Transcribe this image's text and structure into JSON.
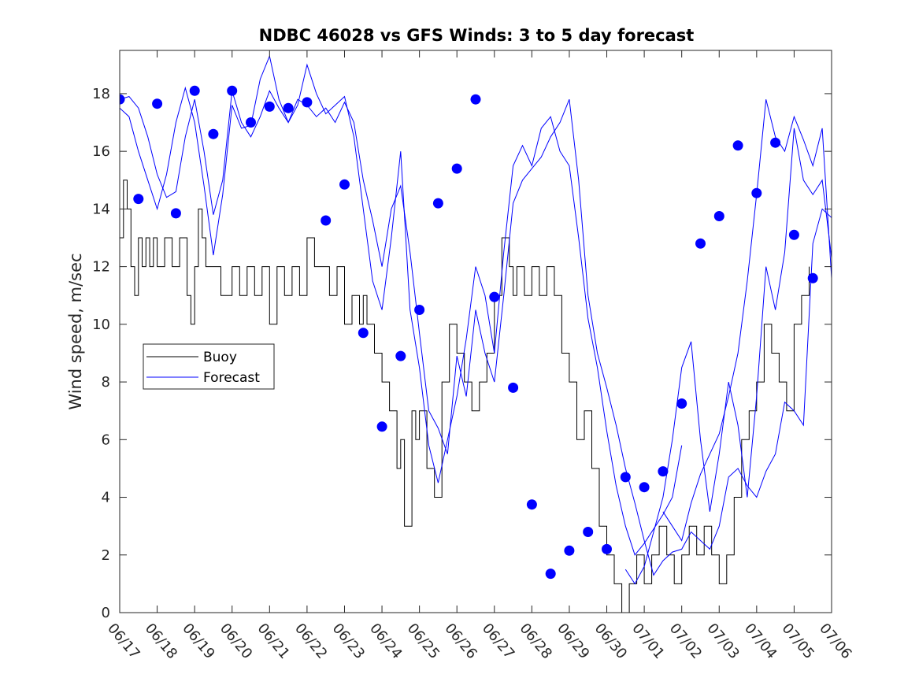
{
  "chart_data": {
    "type": "line",
    "title": "NDBC 46028 vs GFS Winds: 3 to 5 day forecast",
    "xlabel": "",
    "ylabel": "Wind speed, m/sec",
    "x_tick_labels": [
      "06/17",
      "06/18",
      "06/19",
      "06/20",
      "06/21",
      "06/22",
      "06/23",
      "06/24",
      "06/25",
      "06/26",
      "06/27",
      "06/28",
      "06/29",
      "06/30",
      "07/01",
      "07/02",
      "07/03",
      "07/04",
      "07/05",
      "07/06"
    ],
    "xlim_days": [
      0,
      19
    ],
    "y_ticks": [
      0,
      2,
      4,
      6,
      8,
      10,
      12,
      14,
      16,
      18
    ],
    "ylim": [
      0,
      19.5
    ],
    "grid": false,
    "legend": {
      "placement": "middle-left",
      "entries": [
        "Buoy",
        "Forecast"
      ]
    },
    "colors": {
      "buoy": "#000000",
      "forecast": "#0000ff",
      "marker": "#0000ff",
      "axis": "#262626"
    },
    "series": [
      {
        "name": "Buoy",
        "style": "step",
        "x": [
          0,
          0.1,
          0.2,
          0.3,
          0.4,
          0.5,
          0.6,
          0.7,
          0.8,
          0.9,
          1.0,
          1.2,
          1.4,
          1.6,
          1.8,
          1.9,
          2.0,
          2.1,
          2.2,
          2.3,
          2.5,
          2.7,
          3.0,
          3.2,
          3.4,
          3.6,
          3.8,
          4.0,
          4.2,
          4.4,
          4.6,
          4.8,
          5.0,
          5.2,
          5.4,
          5.6,
          5.8,
          6.0,
          6.2,
          6.4,
          6.5,
          6.6,
          6.8,
          7.0,
          7.2,
          7.4,
          7.5,
          7.6,
          7.8,
          7.9,
          8.0,
          8.2,
          8.4,
          8.6,
          8.8,
          9.0,
          9.2,
          9.4,
          9.6,
          9.8,
          10.0,
          10.2,
          10.4,
          10.5,
          10.6,
          10.8,
          11.0,
          11.2,
          11.4,
          11.6,
          11.8,
          12.0,
          12.2,
          12.4,
          12.6,
          12.8,
          13.0,
          13.2,
          13.4,
          13.6,
          13.8,
          14.0,
          14.2,
          14.4,
          14.6,
          14.8,
          15.0,
          15.2,
          15.4,
          15.6,
          15.8,
          16.0,
          16.2,
          16.4,
          16.6,
          16.8,
          17.0,
          17.2,
          17.4,
          17.6,
          17.8,
          18.0,
          18.2,
          18.4
        ],
        "y": [
          13,
          15,
          14,
          12,
          11,
          13,
          12,
          13,
          12,
          13,
          12,
          13,
          12,
          13,
          11,
          10,
          12,
          14,
          13,
          12,
          12,
          11,
          12,
          11,
          12,
          11,
          12,
          10,
          12,
          11,
          12,
          11,
          13,
          12,
          12,
          11,
          12,
          10,
          11,
          10,
          11,
          10,
          9,
          8,
          7,
          5,
          6,
          3,
          7,
          6,
          7,
          5,
          4,
          8,
          10,
          9,
          8,
          7,
          8,
          9,
          11,
          13,
          12,
          11,
          12,
          11,
          12,
          11,
          12,
          11,
          9,
          8,
          6,
          7,
          5,
          3,
          2,
          1,
          0,
          1,
          2,
          1,
          2,
          3,
          2,
          1,
          2,
          3,
          2,
          3,
          2,
          1,
          2,
          4,
          6,
          7,
          8,
          10,
          9,
          8,
          7,
          10,
          11,
          12
        ]
      },
      {
        "name": "Forecast",
        "style": "line",
        "x": [
          0,
          0.25,
          0.5,
          0.75,
          1.0,
          1.25,
          1.5,
          1.75,
          2.0,
          2.25,
          2.5,
          2.75,
          3.0,
          3.25,
          3.5,
          3.75,
          4.0,
          4.25,
          4.5,
          4.75,
          5.0,
          5.25,
          5.5,
          5.75,
          6.0,
          6.25,
          6.5,
          6.75,
          7.0,
          7.25,
          7.5,
          7.75,
          8.0,
          8.25,
          8.5,
          8.75,
          9.0,
          9.25,
          9.5,
          9.75,
          10.0,
          10.25,
          10.5,
          10.75,
          11.0,
          11.25,
          11.5,
          11.75,
          12.0,
          12.25,
          12.5,
          12.75,
          13.0,
          13.25,
          13.5,
          13.75,
          14.0,
          14.25,
          14.5,
          14.75,
          15.0,
          15.25,
          15.5,
          15.75,
          16.0,
          16.25,
          16.5,
          16.75,
          17.0,
          17.25,
          17.5,
          17.75,
          18.0,
          18.25,
          18.5,
          18.75,
          19.0
        ],
        "y": [
          17.8,
          17.9,
          17.5,
          16.5,
          15.2,
          14.4,
          14.6,
          16.5,
          17.8,
          16.0,
          13.8,
          15.0,
          18.1,
          17.0,
          16.5,
          17.2,
          18.1,
          17.5,
          17.0,
          17.8,
          17.6,
          17.2,
          17.5,
          17.0,
          17.7,
          17.0,
          15.0,
          13.6,
          12.0,
          14.0,
          14.8,
          12.5,
          9.7,
          7.0,
          6.4,
          5.5,
          8.9,
          7.5,
          10.5,
          9.0,
          8.0,
          11.0,
          14.2,
          15.0,
          15.4,
          15.8,
          16.5,
          17.0,
          17.8,
          15.0,
          11.0,
          9.0,
          7.8,
          6.5,
          5.0,
          3.8,
          2.5,
          1.3,
          1.8,
          2.1,
          2.2,
          2.8,
          2.5,
          2.2,
          3.0,
          4.7,
          5.0,
          4.4,
          4.0,
          4.9,
          5.5,
          7.3,
          7.0,
          6.5,
          12.8,
          14.0,
          13.7
        ]
      },
      {
        "name": "",
        "style": "line",
        "x": [
          0,
          0.25,
          0.5,
          0.75,
          1.0,
          1.25,
          1.5,
          1.75,
          2.0,
          2.25,
          2.5,
          2.75,
          3.0,
          3.25,
          3.5,
          3.75,
          4.0,
          4.25,
          4.5,
          4.75,
          5.0,
          5.25,
          5.5,
          5.75,
          6.0,
          6.25,
          6.5,
          6.75,
          7.0,
          7.25,
          7.5,
          7.75,
          8.0,
          8.25,
          8.5,
          8.75,
          9.0,
          9.25,
          9.5,
          9.75,
          10.0,
          10.25,
          10.5,
          10.75,
          11.0,
          11.25,
          11.5,
          11.75,
          12.0,
          12.25,
          12.5,
          12.75,
          13.0,
          13.25,
          13.5,
          13.75,
          14.0,
          14.25,
          14.5,
          14.75,
          15.0
        ],
        "y": [
          17.5,
          17.2,
          16.0,
          15.0,
          14.0,
          15.2,
          17.0,
          18.2,
          17.0,
          14.8,
          12.4,
          14.5,
          17.6,
          16.8,
          16.9,
          18.5,
          19.3,
          17.8,
          17.0,
          17.6,
          19.0,
          18.0,
          17.3,
          17.6,
          17.9,
          16.5,
          14.0,
          11.5,
          10.5,
          13.0,
          16.0,
          10.5,
          8.5,
          5.8,
          4.5,
          6.0,
          7.5,
          9.5,
          12.0,
          11.0,
          9.0,
          12.5,
          15.5,
          16.2,
          15.5,
          16.8,
          17.2,
          16.0,
          15.5,
          13.0,
          10.2,
          8.5,
          6.3,
          4.4,
          3.0,
          2.0,
          2.4,
          2.9,
          3.4,
          4.0,
          5.8
        ]
      },
      {
        "name": "",
        "style": "line",
        "x": [
          13.5,
          13.75,
          14.0,
          14.25,
          14.5,
          14.75,
          15.0,
          15.25,
          15.5,
          15.75,
          16.0,
          16.25,
          16.5,
          16.75,
          17.0,
          17.25,
          17.5,
          17.75,
          18.0,
          18.25,
          18.5,
          18.75,
          19.0
        ],
        "y": [
          1.5,
          1.0,
          1.6,
          2.8,
          4.0,
          6.0,
          8.5,
          9.4,
          6.0,
          3.5,
          5.5,
          8.0,
          6.5,
          4.0,
          7.5,
          12.0,
          10.5,
          12.5,
          16.8,
          15.0,
          14.5,
          15.0,
          12.3
        ]
      },
      {
        "name": "",
        "style": "line",
        "x": [
          14.5,
          14.75,
          15.0,
          15.25,
          15.5,
          15.75,
          16.0,
          16.25,
          16.5,
          16.75,
          17.0,
          17.25,
          17.5,
          17.75,
          18.0,
          18.25,
          18.5,
          18.75,
          19.0
        ],
        "y": [
          3.5,
          3.0,
          2.5,
          3.8,
          4.8,
          5.5,
          6.2,
          7.5,
          9.0,
          11.5,
          14.5,
          17.8,
          16.5,
          16.0,
          17.2,
          16.4,
          15.5,
          16.8,
          11.6
        ]
      }
    ],
    "markers": {
      "name": "Forecast verification points",
      "x": [
        0.0,
        0.5,
        1.0,
        1.5,
        2.0,
        2.5,
        3.0,
        3.5,
        4.0,
        4.5,
        5.0,
        5.5,
        6.0,
        6.5,
        7.0,
        7.5,
        8.0,
        8.5,
        9.0,
        9.5,
        10.0,
        10.5,
        11.0,
        11.5,
        12.0,
        12.5,
        13.0,
        13.5,
        14.0,
        14.5,
        15.0,
        15.5,
        16.0,
        16.5,
        17.0,
        17.5,
        18.0,
        18.5
      ],
      "y": [
        17.8,
        14.35,
        17.65,
        13.85,
        18.1,
        16.6,
        18.1,
        17.0,
        17.55,
        17.5,
        17.7,
        13.6,
        14.85,
        9.7,
        6.45,
        8.9,
        10.5,
        14.2,
        15.4,
        17.8,
        10.95,
        7.8,
        3.75,
        1.35,
        2.15,
        2.8,
        2.2,
        4.7,
        4.35,
        4.9,
        7.25,
        12.8,
        13.75,
        16.2,
        14.55,
        16.3,
        13.1,
        11.6
      ]
    }
  }
}
